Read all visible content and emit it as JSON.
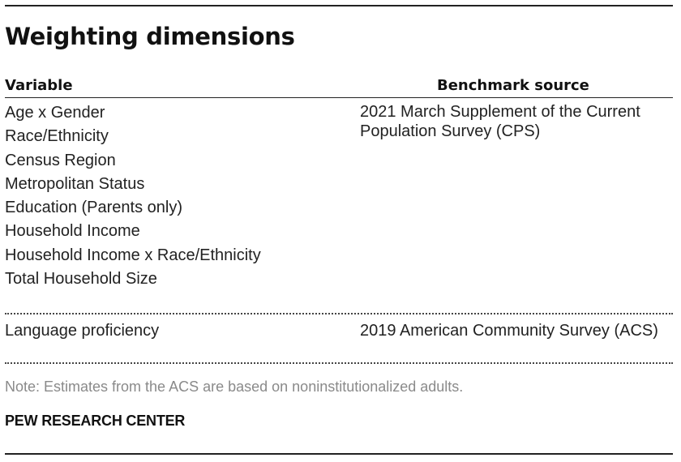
{
  "title": "Weighting dimensions",
  "table": {
    "headers": {
      "variable": "Variable",
      "source": "Benchmark source"
    },
    "groups": [
      {
        "variables": [
          "Age x Gender",
          "Race/Ethnicity",
          "Census Region",
          "Metropolitan Status",
          "Education (Parents only)",
          "Household Income",
          "Household Income x Race/Ethnicity",
          "Total Household Size"
        ],
        "source": "2021 March Supplement of the Current Population Survey (CPS)"
      },
      {
        "variables": [
          "Language proficiency"
        ],
        "source": "2019 American Community Survey (ACS)"
      }
    ]
  },
  "note": "Note: Estimates from the ACS are based on noninstitutionalized adults.",
  "credit": "PEW RESEARCH CENTER"
}
